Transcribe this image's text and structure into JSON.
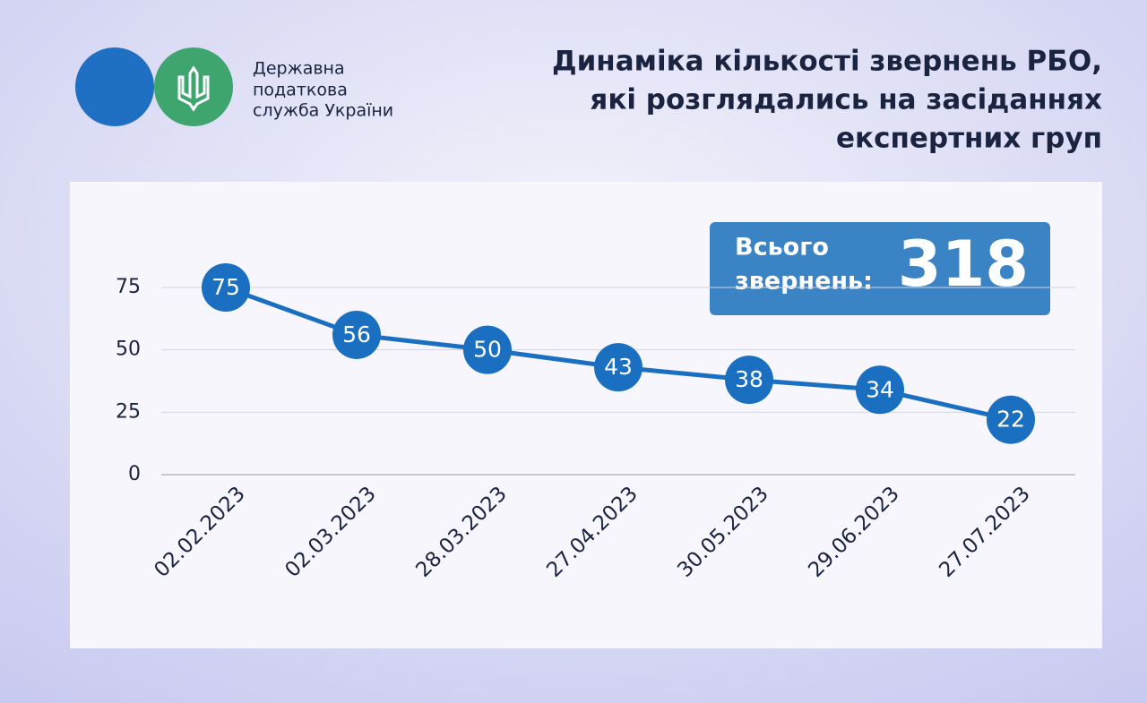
{
  "header": {
    "org_lines": [
      "Державна",
      "податкова",
      "служба України"
    ]
  },
  "chart_data": {
    "type": "line",
    "title_lines": [
      "Динаміка кількості звернень РБО,",
      "які розглядались на засіданнях",
      "експертних груп"
    ],
    "categories": [
      "02.02.2023",
      "02.03.2023",
      "28.03.2023",
      "27.04.2023",
      "30.05.2023",
      "29.06.2023",
      "27.07.2023"
    ],
    "values": [
      75,
      56,
      50,
      43,
      38,
      34,
      22
    ],
    "color": "#1a6fc0",
    "ylim": [
      0,
      75
    ],
    "yticks": [
      0,
      25,
      50,
      75
    ],
    "grid": true,
    "total": {
      "label_lines": [
        "Всього",
        "звернень:"
      ],
      "value": 318
    }
  }
}
